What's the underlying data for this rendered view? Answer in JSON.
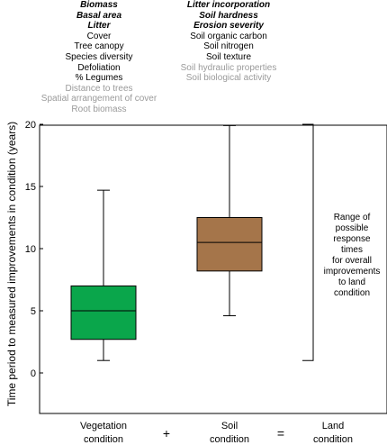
{
  "vegetation_indicators": [
    {
      "text": "Biomass",
      "style": "bold-italic"
    },
    {
      "text": "Basal area",
      "style": "bold-italic"
    },
    {
      "text": "Litter",
      "style": "bold-italic"
    },
    {
      "text": "Cover",
      "style": "normal"
    },
    {
      "text": "Tree canopy",
      "style": "normal"
    },
    {
      "text": "Species diversity",
      "style": "normal"
    },
    {
      "text": "Defoliation",
      "style": "normal"
    },
    {
      "text": "% Legumes",
      "style": "normal"
    },
    {
      "text": "Distance to trees",
      "style": "grey"
    },
    {
      "text": "Spatial arrangement of cover",
      "style": "grey"
    },
    {
      "text": "Root biomass",
      "style": "grey"
    }
  ],
  "soil_indicators": [
    {
      "text": "Litter incorporation",
      "style": "bold-italic"
    },
    {
      "text": "Soil hardness",
      "style": "bold-italic"
    },
    {
      "text": "Erosion severity",
      "style": "bold-italic"
    },
    {
      "text": "Soil organic carbon",
      "style": "normal"
    },
    {
      "text": "Soil nitrogen",
      "style": "normal"
    },
    {
      "text": "Soil texture",
      "style": "normal"
    },
    {
      "text": "Soil hydraulic properties",
      "style": "grey"
    },
    {
      "text": "Soil biological activity",
      "style": "grey"
    }
  ],
  "equation": {
    "plus": "+",
    "equals": "=",
    "land_line1": "Land",
    "land_line2": "condition"
  },
  "range_note": [
    "Range of",
    "possible",
    "response",
    "times",
    "for overall",
    "improvements",
    "to land",
    "condition"
  ],
  "chart_data": {
    "type": "boxplot",
    "ylabel": "Time period to measured improvements in condition (years)",
    "ylim": [
      -3,
      20
    ],
    "yticks": [
      0,
      5,
      10,
      15,
      20
    ],
    "categories": [
      {
        "line1": "Vegetation",
        "line2": "condition"
      },
      {
        "line1": "Soil",
        "line2": "condition"
      }
    ],
    "boxes": [
      {
        "min": 1,
        "q1": 2.7,
        "median": 5,
        "q3": 7,
        "max": 14.7,
        "color": "#0aa64b"
      },
      {
        "min": 4.6,
        "q1": 8.2,
        "median": 10.5,
        "q3": 12.5,
        "max": 19.9,
        "color": "#a5754a"
      }
    ],
    "range_bracket": [
      1,
      20
    ]
  }
}
